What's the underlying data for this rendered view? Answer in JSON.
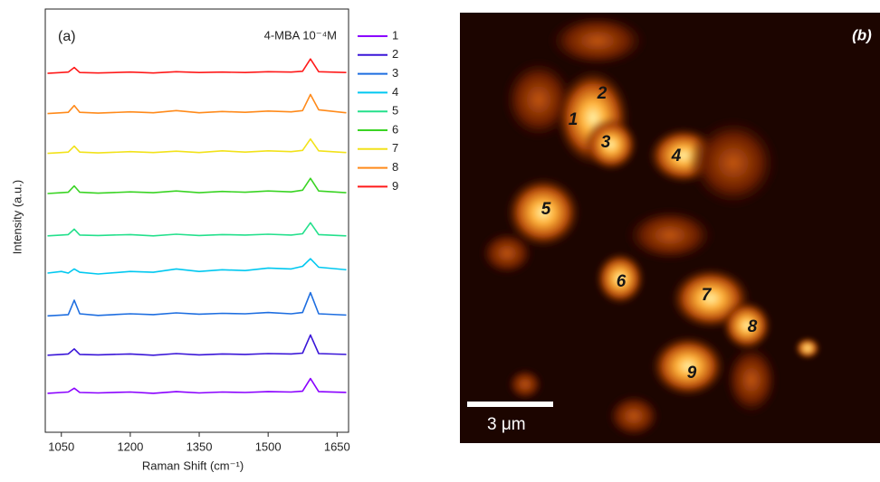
{
  "chart_data": {
    "type": "line",
    "annotation": "(a)",
    "subtitle": "4-MBA 10⁻⁴M",
    "xlabel": "Raman Shift (cm⁻¹)",
    "ylabel": "Intensity (a.u.)",
    "xlim": [
      1015,
      1675
    ],
    "xticks": [
      1050,
      1200,
      1350,
      1500,
      1650
    ],
    "ylim": [
      0,
      10
    ],
    "legend": "right",
    "x": [
      1020,
      1050,
      1065,
      1078,
      1090,
      1130,
      1200,
      1250,
      1300,
      1350,
      1400,
      1450,
      1500,
      1550,
      1575,
      1592,
      1610,
      1670
    ],
    "series": [
      {
        "name": "1",
        "color": "#8a00ff",
        "values": [
          0.92,
          0.94,
          0.95,
          1.04,
          0.94,
          0.93,
          0.95,
          0.92,
          0.96,
          0.93,
          0.95,
          0.94,
          0.96,
          0.95,
          0.97,
          1.27,
          0.96,
          0.94
        ]
      },
      {
        "name": "2",
        "color": "#3a16d8",
        "values": [
          1.82,
          1.84,
          1.85,
          1.97,
          1.84,
          1.83,
          1.85,
          1.82,
          1.86,
          1.83,
          1.85,
          1.84,
          1.86,
          1.85,
          1.87,
          2.3,
          1.86,
          1.84
        ]
      },
      {
        "name": "3",
        "color": "#1e6ee0",
        "values": [
          2.75,
          2.77,
          2.78,
          3.12,
          2.8,
          2.76,
          2.8,
          2.78,
          2.82,
          2.79,
          2.81,
          2.8,
          2.83,
          2.8,
          2.83,
          3.3,
          2.8,
          2.77
        ]
      },
      {
        "name": "4",
        "color": "#00c8f0",
        "values": [
          3.76,
          3.8,
          3.76,
          3.86,
          3.78,
          3.74,
          3.8,
          3.78,
          3.86,
          3.8,
          3.84,
          3.82,
          3.88,
          3.86,
          3.92,
          4.1,
          3.9,
          3.84
        ]
      },
      {
        "name": "5",
        "color": "#24e08c",
        "values": [
          4.64,
          4.66,
          4.67,
          4.8,
          4.66,
          4.65,
          4.67,
          4.64,
          4.68,
          4.65,
          4.67,
          4.66,
          4.68,
          4.66,
          4.69,
          4.95,
          4.67,
          4.64
        ]
      },
      {
        "name": "6",
        "color": "#3ad424",
        "values": [
          5.64,
          5.66,
          5.67,
          5.82,
          5.67,
          5.65,
          5.68,
          5.66,
          5.7,
          5.66,
          5.69,
          5.67,
          5.7,
          5.68,
          5.72,
          6.0,
          5.7,
          5.66
        ]
      },
      {
        "name": "7",
        "color": "#f2e21a",
        "values": [
          6.59,
          6.61,
          6.62,
          6.76,
          6.62,
          6.6,
          6.63,
          6.61,
          6.64,
          6.61,
          6.65,
          6.62,
          6.65,
          6.63,
          6.66,
          6.93,
          6.65,
          6.61
        ]
      },
      {
        "name": "8",
        "color": "#ff8a1a",
        "values": [
          7.53,
          7.55,
          7.56,
          7.72,
          7.56,
          7.54,
          7.57,
          7.55,
          7.6,
          7.55,
          7.58,
          7.56,
          7.59,
          7.57,
          7.6,
          7.98,
          7.62,
          7.55
        ]
      },
      {
        "name": "9",
        "color": "#ff1a1a",
        "values": [
          8.48,
          8.5,
          8.51,
          8.62,
          8.5,
          8.49,
          8.51,
          8.49,
          8.52,
          8.5,
          8.51,
          8.5,
          8.52,
          8.51,
          8.53,
          8.82,
          8.52,
          8.5
        ]
      }
    ]
  },
  "image": {
    "panel_label": "(b)",
    "scale_bar_label": "3 μm",
    "spot_labels": [
      "1",
      "2",
      "3",
      "4",
      "5",
      "6",
      "7",
      "8",
      "9"
    ]
  }
}
